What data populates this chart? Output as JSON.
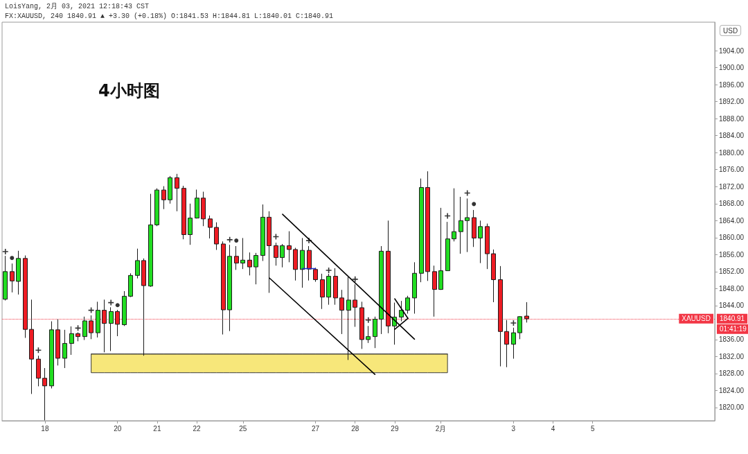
{
  "chart_data": {
    "type": "candlestick",
    "title": "4小时图",
    "ylabel": "USD",
    "annotations": [
      "LoisYang, 2月 03, 2021 12:18:43 CST",
      "FX:XAUUSD, 240 1840.91 ▲ +3.30 (+0.18%) O:1841.53 H:1844.81 L:1840.01 C:1840.91",
      {
        "text": "XAUUSD",
        "y": 1840.91
      },
      "01:41:19"
    ],
    "categories": [
      null,
      null,
      null,
      null,
      null,
      null,
      "18",
      null,
      null,
      null,
      null,
      null,
      null,
      null,
      null,
      null,
      null,
      "20",
      null,
      null,
      null,
      null,
      null,
      "21",
      null,
      null,
      null,
      null,
      null,
      "22",
      null,
      null,
      null,
      null,
      null,
      null,
      "25",
      null,
      null,
      null,
      null,
      null,
      null,
      null,
      null,
      null,
      null,
      "27",
      null,
      null,
      null,
      null,
      null,
      "28",
      null,
      null,
      null,
      null,
      null,
      "29",
      null,
      null,
      null,
      null,
      null,
      null,
      "2月",
      null,
      null,
      null,
      null,
      null,
      null,
      null,
      null,
      null,
      null,
      "3",
      null,
      null,
      null,
      null,
      null,
      "4",
      null,
      null,
      null,
      null,
      null,
      "5",
      null,
      null,
      null,
      null,
      null,
      null,
      null,
      null,
      null,
      null,
      null,
      null,
      null,
      null,
      null,
      null,
      null,
      null
    ],
    "ylim": [
      1816.9,
      1910.7
    ],
    "yticks": [
      {
        "value": 1820,
        "label": "1820.00"
      },
      {
        "value": 1824,
        "label": "1824.00"
      },
      {
        "value": 1828,
        "label": "1828.00"
      },
      {
        "value": 1832,
        "label": "1832.00"
      },
      {
        "value": 1836,
        "label": "1836.00"
      },
      {
        "value": 1844,
        "label": "1844.00"
      },
      {
        "value": 1848,
        "label": "1848.00"
      },
      {
        "value": 1852,
        "label": "1852.00"
      },
      {
        "value": 1856,
        "label": "1856.00"
      },
      {
        "value": 1860,
        "label": "1860.00"
      },
      {
        "value": 1864,
        "label": "1864.00"
      },
      {
        "value": 1868,
        "label": "1868.00"
      },
      {
        "value": 1872,
        "label": "1872.00"
      },
      {
        "value": 1876,
        "label": "1876.00"
      },
      {
        "value": 1880,
        "label": "1880.00"
      },
      {
        "value": 1884,
        "label": "1884.00"
      },
      {
        "value": 1888,
        "label": "1888.00"
      },
      {
        "value": 1892,
        "label": "1892.00"
      },
      {
        "value": 1896,
        "label": "1896.00"
      },
      {
        "value": 1900,
        "label": "1900.00"
      },
      {
        "value": 1904,
        "label": "1904.00"
      }
    ],
    "ref_lines": [
      {
        "axis": "y",
        "value": 1840.91,
        "label": "1840.91",
        "color": "#f23645",
        "line_style": "dotted"
      }
    ],
    "series": [
      {
        "type": "line",
        "color": "#3a3a3a",
        "values": [
          null,
          null,
          null,
          null,
          null,
          null,
          null,
          null,
          null,
          null,
          null,
          null,
          null,
          1832.6,
          1832.6,
          1832.6,
          1832.6,
          1832.6,
          1832.6,
          1832.6,
          1832.6,
          1832.6,
          1832.6,
          1832.6,
          1832.6,
          1832.6,
          1832.6,
          1832.6,
          1832.6,
          1832.6,
          1832.6,
          1832.6,
          1832.6,
          1832.6,
          1832.6,
          1832.6,
          1832.6,
          1832.6,
          1832.6,
          1832.6,
          1832.6,
          1832.6,
          1832.6,
          1832.6,
          1832.6,
          1832.6,
          1832.6,
          1832.6,
          1832.6,
          1832.6,
          1832.6,
          1832.6,
          1832.6,
          1832.6,
          1832.6,
          1832.6,
          1832.6,
          1832.6,
          1832.6,
          1832.6,
          1832.6,
          1832.6,
          1832.6,
          1832.6,
          1832.6,
          1832.6,
          1832.6,
          1832.6,
          null,
          null,
          null,
          null,
          null,
          null,
          null,
          null,
          null,
          null,
          null,
          null,
          null,
          null,
          null,
          null,
          null,
          null,
          null,
          null,
          null,
          null,
          null,
          null,
          null,
          null,
          null,
          null,
          null,
          null,
          null,
          null,
          null,
          null,
          null,
          null,
          null,
          null,
          null,
          null
        ],
        "upper": [
          null,
          null,
          null,
          null,
          null,
          null,
          null,
          null,
          null,
          null,
          null,
          null,
          null,
          1832.6,
          1832.6,
          1832.6,
          1832.6,
          1832.6,
          1832.6,
          1832.6,
          1832.6,
          1832.6,
          1832.6,
          1832.6,
          1832.6,
          1832.6,
          1832.6,
          1832.6,
          1832.6,
          1832.6,
          1832.6,
          1832.6,
          1832.6,
          1832.6,
          1832.6,
          1832.6,
          1832.6,
          1832.6,
          1832.6,
          1832.6,
          1832.6,
          1832.6,
          1832.6,
          1832.6,
          1832.6,
          1832.6,
          1832.6,
          1832.6,
          1832.6,
          1832.6,
          1832.6,
          1832.6,
          1832.6,
          1832.6,
          1832.6,
          1832.6,
          1832.6,
          1832.6,
          1832.6,
          1832.6,
          1832.6,
          1832.6,
          1832.6,
          1832.6,
          1832.6,
          1832.6,
          1832.6,
          1832.6,
          null,
          null,
          null,
          null,
          null,
          null,
          null,
          null,
          null,
          null,
          null,
          null,
          null,
          null,
          null,
          null,
          null,
          null,
          null,
          null,
          null,
          null,
          null,
          null,
          null,
          null,
          null,
          null,
          null,
          null,
          null,
          null,
          null,
          null,
          null,
          null,
          null,
          null,
          null,
          null
        ],
        "lower": [
          null,
          null,
          null,
          null,
          null,
          null,
          null,
          null,
          null,
          null,
          null,
          null,
          null,
          1828.2,
          1828.2,
          1828.2,
          1828.2,
          1828.2,
          1828.2,
          1828.2,
          1828.2,
          1828.2,
          1828.2,
          1828.2,
          1828.2,
          1828.2,
          1828.2,
          1828.2,
          1828.2,
          1828.2,
          1828.2,
          1828.2,
          1828.2,
          1828.2,
          1828.2,
          1828.2,
          1828.2,
          1828.2,
          1828.2,
          1828.2,
          1828.2,
          1828.2,
          1828.2,
          1828.2,
          1828.2,
          1828.2,
          1828.2,
          1828.2,
          1828.2,
          1828.2,
          1828.2,
          1828.2,
          1828.2,
          1828.2,
          1828.2,
          1828.2,
          1828.2,
          1828.2,
          1828.2,
          1828.2,
          1828.2,
          1828.2,
          1828.2,
          1828.2,
          1828.2,
          1828.2,
          1828.2,
          1828.2,
          null,
          null,
          null,
          null,
          null,
          null,
          null,
          null,
          null,
          null,
          null,
          null,
          null,
          null,
          null,
          null,
          null,
          null,
          null,
          null,
          null,
          null,
          null,
          null,
          null,
          null,
          null,
          null,
          null,
          null,
          null,
          null,
          null,
          null,
          null,
          null,
          null,
          null,
          null,
          null
        ]
      },
      {
        "ohlc": [
          [
            1845.5,
            1855.7,
            1845.2,
            1852.0
          ],
          [
            1852.0,
            1853.9,
            1847.1,
            1849.8
          ],
          [
            1849.7,
            1856.9,
            1846.6,
            1855.1
          ],
          [
            1855.1,
            1855.8,
            1836.4,
            1838.4
          ],
          [
            1838.4,
            1845.4,
            1823.2,
            1831.4
          ],
          [
            1831.4,
            1832.2,
            1825.0,
            1826.9
          ],
          [
            1826.9,
            1829.3,
            1817.0,
            1825.1
          ],
          [
            1825.1,
            1840.3,
            1824.5,
            1838.3
          ],
          [
            1838.3,
            1840.8,
            1829.9,
            1831.6
          ],
          [
            1831.6,
            1838.3,
            1829.3,
            1835.1
          ],
          [
            1835.1,
            1839.1,
            1832.4,
            1837.4
          ],
          [
            1837.4,
            1837.7,
            1835.6,
            1836.7
          ],
          [
            1836.7,
            1841.4,
            1835.9,
            1840.4
          ],
          [
            1840.4,
            1841.7,
            1836.1,
            1837.6
          ],
          [
            1837.6,
            1844.9,
            1836.5,
            1842.9
          ],
          [
            1842.9,
            1845.4,
            1833.0,
            1839.8
          ],
          [
            1839.8,
            1843.6,
            1833.3,
            1842.6
          ],
          [
            1842.6,
            1843.0,
            1836.8,
            1839.6
          ],
          [
            1839.5,
            1847.4,
            1839.2,
            1846.2
          ],
          [
            1846.2,
            1851.6,
            1846.0,
            1851.1
          ],
          [
            1851.1,
            1857.4,
            1850.4,
            1854.6
          ],
          [
            1854.6,
            1855.1,
            1832.2,
            1848.7
          ],
          [
            1848.6,
            1870.3,
            1848.4,
            1863.0
          ],
          [
            1863.0,
            1871.6,
            1862.7,
            1871.2
          ],
          [
            1871.2,
            1872.1,
            1866.7,
            1868.9
          ],
          [
            1868.9,
            1874.5,
            1868.0,
            1874.1
          ],
          [
            1874.1,
            1875.0,
            1866.2,
            1871.6
          ],
          [
            1871.6,
            1872.2,
            1859.6,
            1860.7
          ],
          [
            1860.7,
            1868.0,
            1858.3,
            1864.6
          ],
          [
            1864.6,
            1871.3,
            1864.5,
            1869.3
          ],
          [
            1869.3,
            1870.8,
            1862.7,
            1864.4
          ],
          [
            1864.4,
            1865.2,
            1859.8,
            1862.4
          ],
          [
            1862.4,
            1863.6,
            1857.1,
            1858.5
          ],
          [
            1858.5,
            1859.1,
            1837.2,
            1843.0
          ],
          [
            1843.0,
            1858.3,
            1838.0,
            1855.6
          ],
          [
            1855.6,
            1858.0,
            1852.4,
            1854.0
          ],
          [
            1854.0,
            1859.9,
            1852.6,
            1854.7
          ],
          [
            1854.7,
            1856.5,
            1851.1,
            1853.1
          ],
          [
            1853.1,
            1856.4,
            1849.0,
            1855.8
          ],
          [
            1855.8,
            1867.8,
            1854.5,
            1864.8
          ],
          [
            1864.8,
            1866.2,
            1847.0,
            1858.1
          ],
          [
            1858.1,
            1858.8,
            1853.4,
            1855.3
          ],
          [
            1855.3,
            1858.5,
            1853.0,
            1858.1
          ],
          [
            1858.1,
            1861.5,
            1854.2,
            1857.2
          ],
          [
            1857.2,
            1857.6,
            1849.9,
            1852.5
          ],
          [
            1852.5,
            1859.9,
            1848.2,
            1857.0
          ],
          [
            1857.0,
            1858.0,
            1849.9,
            1852.6
          ],
          [
            1852.5,
            1852.9,
            1849.6,
            1850.1
          ],
          [
            1850.1,
            1851.5,
            1843.2,
            1846.0
          ],
          [
            1846.0,
            1851.5,
            1844.2,
            1850.9
          ],
          [
            1850.9,
            1852.8,
            1844.2,
            1845.8
          ],
          [
            1845.8,
            1847.7,
            1837.3,
            1842.9
          ],
          [
            1842.9,
            1850.7,
            1831.2,
            1845.3
          ],
          [
            1845.3,
            1849.0,
            1839.0,
            1843.6
          ],
          [
            1843.5,
            1844.9,
            1833.8,
            1836.0
          ],
          [
            1836.0,
            1839.2,
            1835.2,
            1836.7
          ],
          [
            1836.7,
            1841.4,
            1834.0,
            1840.8
          ],
          [
            1840.8,
            1858.0,
            1837.3,
            1856.8
          ],
          [
            1856.8,
            1864.0,
            1837.5,
            1839.2
          ],
          [
            1839.2,
            1844.7,
            1834.8,
            1841.3
          ],
          [
            1841.3,
            1845.1,
            1840.3,
            1842.9
          ],
          [
            1842.9,
            1846.3,
            1842.1,
            1845.8
          ],
          [
            1845.8,
            1854.2,
            1842.1,
            1851.6
          ],
          [
            1851.6,
            1873.9,
            1849.5,
            1871.8
          ],
          [
            1871.8,
            1875.6,
            1849.8,
            1852.0
          ],
          [
            1852.0,
            1853.4,
            1841.4,
            1847.8
          ],
          [
            1847.8,
            1867.0,
            1847.7,
            1852.2
          ],
          [
            1852.2,
            1863.7,
            1852.2,
            1859.7
          ],
          [
            1859.7,
            1871.6,
            1859.1,
            1861.4
          ],
          [
            1861.4,
            1869.6,
            1856.2,
            1864.0
          ],
          [
            1864.0,
            1869.2,
            1856.6,
            1864.7
          ],
          [
            1864.7,
            1866.5,
            1857.8,
            1859.9
          ],
          [
            1859.9,
            1864.0,
            1854.0,
            1862.6
          ],
          [
            1862.6,
            1863.3,
            1852.6,
            1856.2
          ],
          [
            1856.2,
            1857.2,
            1844.8,
            1850.1
          ],
          [
            1850.1,
            1853.3,
            1829.7,
            1837.9
          ],
          [
            1837.9,
            1840.6,
            1829.5,
            1834.9
          ],
          [
            1834.9,
            1838.8,
            1831.5,
            1837.6
          ],
          [
            1837.6,
            1841.5,
            1836.1,
            1841.4
          ],
          [
            1841.53,
            1844.81,
            1840.01,
            1840.91
          ],
          null,
          null,
          null,
          null,
          null,
          null,
          null,
          null,
          null,
          null,
          null,
          null,
          null,
          null,
          null,
          null,
          null,
          null,
          null,
          null,
          null,
          null,
          null,
          null,
          null,
          null,
          null,
          null
        ]
      },
      {
        "type": "scatter",
        "marker": "cross",
        "color": "#000000",
        "values": [
          1856.7,
          null,
          null,
          null,
          null,
          1833.5,
          null,
          null,
          null,
          null,
          null,
          1838.7,
          null,
          1842.9,
          null,
          null,
          1844.7,
          null,
          null,
          null,
          null,
          null,
          null,
          null,
          null,
          null,
          null,
          null,
          null,
          null,
          null,
          null,
          null,
          null,
          1859.5,
          null,
          null,
          null,
          null,
          null,
          null,
          1860.2,
          null,
          null,
          null,
          null,
          1859.3,
          null,
          null,
          1852.3,
          null,
          null,
          null,
          1850.2,
          null,
          1840.6,
          null,
          null,
          null,
          null,
          null,
          null,
          null,
          null,
          null,
          null,
          null,
          1865.1,
          null,
          null,
          1870.5,
          null,
          null,
          null,
          null,
          null,
          null,
          1839.9,
          null,
          null,
          null,
          null,
          null,
          null,
          null,
          null,
          null,
          null,
          null,
          null,
          null,
          null,
          null,
          null,
          null,
          null,
          null,
          null,
          null,
          null,
          null,
          null,
          null,
          null,
          null,
          null,
          null,
          null
        ]
      },
      {
        "type": "scatter",
        "marker": "circle",
        "color": "#000000",
        "values": [
          null,
          1855.2,
          null,
          null,
          null,
          null,
          null,
          null,
          null,
          null,
          null,
          null,
          null,
          null,
          null,
          null,
          null,
          1844.1,
          null,
          null,
          null,
          null,
          null,
          null,
          null,
          null,
          null,
          null,
          null,
          null,
          null,
          null,
          null,
          null,
          null,
          1859.3,
          null,
          null,
          null,
          null,
          null,
          null,
          null,
          null,
          null,
          null,
          null,
          null,
          null,
          null,
          null,
          null,
          null,
          null,
          null,
          null,
          null,
          null,
          null,
          null,
          null,
          null,
          null,
          null,
          null,
          null,
          null,
          null,
          null,
          null,
          null,
          1867.9,
          null,
          null,
          null,
          null,
          null,
          null,
          null,
          null,
          null,
          null,
          null,
          null,
          null,
          null,
          null,
          null,
          null,
          null,
          null,
          null,
          null,
          null,
          null,
          null,
          null,
          null,
          null,
          null,
          null,
          null,
          null,
          null,
          null,
          null,
          null,
          null
        ]
      },
      {
        "type": "line",
        "color": "#000000",
        "values": [
          null,
          null,
          null,
          null,
          null,
          null,
          null,
          null,
          null,
          null,
          null,
          null,
          null,
          null,
          null,
          null,
          null,
          null,
          null,
          null,
          null,
          null,
          null,
          null,
          null,
          null,
          null,
          null,
          null,
          null,
          null,
          null,
          null,
          null,
          null,
          null,
          null,
          null,
          null,
          null,
          null,
          null,
          1865.5,
          null,
          null,
          null,
          null,
          null,
          null,
          null,
          null,
          null,
          null,
          null,
          null,
          null,
          null,
          null,
          null,
          null,
          null,
          null,
          1836.1,
          null,
          null,
          null,
          null,
          null,
          null,
          null,
          null,
          null,
          null,
          null,
          null,
          null,
          null,
          null,
          null,
          null,
          null,
          null,
          null,
          null,
          null,
          null,
          null,
          null,
          null,
          null,
          null,
          null,
          null,
          null,
          null,
          null,
          null,
          null,
          null,
          null,
          null,
          null,
          null,
          null,
          null,
          null,
          null,
          null
        ]
      },
      {
        "type": "line",
        "color": "#000000",
        "values": [
          null,
          null,
          null,
          null,
          null,
          null,
          null,
          null,
          null,
          null,
          null,
          null,
          null,
          null,
          null,
          null,
          null,
          null,
          null,
          null,
          null,
          null,
          null,
          null,
          null,
          null,
          null,
          null,
          null,
          null,
          null,
          null,
          null,
          null,
          null,
          null,
          null,
          null,
          null,
          null,
          1850.5,
          null,
          null,
          null,
          null,
          null,
          null,
          null,
          null,
          null,
          null,
          null,
          null,
          null,
          null,
          null,
          1827.8,
          null,
          null,
          null,
          null,
          null,
          null,
          null,
          null,
          null,
          null,
          null,
          null,
          null,
          null,
          null,
          null,
          null,
          null,
          null,
          null,
          null,
          null,
          null,
          null,
          null,
          null,
          null,
          null,
          null,
          null,
          null,
          null,
          null,
          null,
          null,
          null,
          null,
          null,
          null,
          null,
          null,
          null,
          null,
          null,
          null,
          null,
          null,
          null,
          null,
          null,
          null
        ]
      },
      {
        "type": "line",
        "color": "#000000",
        "values": [
          null,
          null,
          null,
          null,
          null,
          null,
          null,
          null,
          null,
          null,
          null,
          null,
          null,
          null,
          null,
          null,
          null,
          null,
          null,
          null,
          null,
          null,
          null,
          null,
          null,
          null,
          null,
          null,
          null,
          null,
          null,
          null,
          null,
          null,
          null,
          null,
          null,
          null,
          null,
          null,
          null,
          null,
          null,
          null,
          null,
          null,
          null,
          null,
          null,
          null,
          null,
          null,
          null,
          null,
          null,
          null,
          null,
          null,
          null,
          1845.6,
          null,
          1841.0,
          null,
          null,
          null,
          null,
          null,
          null,
          null,
          null,
          null,
          null,
          null,
          null,
          null,
          null,
          null,
          null,
          null,
          null,
          null,
          null,
          null,
          null,
          null,
          null,
          null,
          null,
          null,
          null,
          null,
          null,
          null,
          null,
          null,
          null,
          null,
          null,
          null,
          null,
          null,
          null,
          null,
          null,
          null,
          null,
          null,
          null
        ]
      },
      {
        "type": "line",
        "color": "#000000",
        "values": [
          null,
          null,
          null,
          null,
          null,
          null,
          null,
          null,
          null,
          null,
          null,
          null,
          null,
          null,
          null,
          null,
          null,
          null,
          null,
          null,
          null,
          null,
          null,
          null,
          null,
          null,
          null,
          null,
          null,
          null,
          null,
          null,
          null,
          null,
          null,
          null,
          null,
          null,
          null,
          null,
          null,
          null,
          null,
          null,
          null,
          null,
          null,
          null,
          null,
          null,
          null,
          null,
          null,
          null,
          null,
          null,
          null,
          null,
          null,
          1838.4,
          null,
          1841.0,
          null,
          null,
          null,
          null,
          null,
          null,
          null,
          null,
          null,
          null,
          null,
          null,
          null,
          null,
          null,
          null,
          null,
          null,
          null,
          null,
          null,
          null,
          null,
          null,
          null,
          null,
          null,
          null,
          null,
          null,
          null,
          null,
          null,
          null,
          null,
          null,
          null,
          null,
          null,
          null,
          null,
          null,
          null,
          null,
          null,
          null
        ]
      },
      {
        "type": "line",
        "color": "#1f2ecc",
        "values": [
          null,
          null,
          null,
          null,
          null,
          null,
          null,
          null,
          null,
          null,
          null,
          null,
          null,
          null,
          null,
          null,
          null,
          null,
          null,
          null,
          null,
          null,
          null,
          null,
          null,
          null,
          null,
          null,
          null,
          null,
          null,
          null,
          null,
          null,
          null,
          null,
          null,
          null,
          null,
          null,
          null,
          null,
          null,
          null,
          null,
          1852.7,
          null,
          1852.7,
          null,
          null,
          null,
          null,
          null,
          null,
          null,
          null,
          null,
          null,
          null,
          null,
          null,
          null,
          null,
          null,
          null,
          null,
          null,
          null,
          null,
          null,
          null,
          null,
          null,
          null,
          null,
          null,
          null,
          null,
          null,
          null,
          null,
          null,
          null,
          null,
          null,
          null,
          null,
          null,
          null,
          null,
          null,
          null,
          null,
          null,
          null,
          null,
          null,
          null,
          null,
          null,
          null,
          null,
          null,
          null,
          null,
          null,
          null,
          null
        ]
      }
    ]
  }
}
